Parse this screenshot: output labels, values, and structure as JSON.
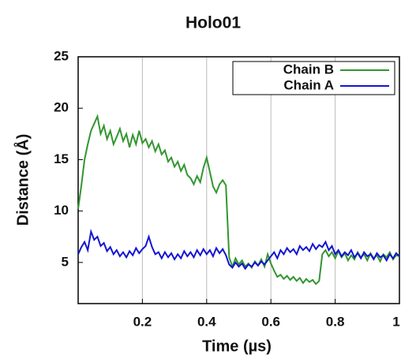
{
  "chart_data": {
    "type": "line",
    "title": "Holo01",
    "x_label": "Time (µs)",
    "y_label": "Distance (Å)",
    "x": [
      0,
      0.01,
      0.02,
      0.03,
      0.04,
      0.05,
      0.06,
      0.07,
      0.08,
      0.09,
      0.1,
      0.11,
      0.12,
      0.13,
      0.14,
      0.15,
      0.16,
      0.17,
      0.18,
      0.19,
      0.2,
      0.21,
      0.22,
      0.23,
      0.24,
      0.25,
      0.26,
      0.27,
      0.28,
      0.29,
      0.3,
      0.31,
      0.32,
      0.33,
      0.34,
      0.35,
      0.36,
      0.37,
      0.38,
      0.39,
      0.4,
      0.41,
      0.42,
      0.43,
      0.44,
      0.45,
      0.46,
      0.47,
      0.48,
      0.49,
      0.5,
      0.51,
      0.52,
      0.53,
      0.54,
      0.55,
      0.56,
      0.57,
      0.58,
      0.59,
      0.6,
      0.61,
      0.62,
      0.63,
      0.64,
      0.65,
      0.66,
      0.67,
      0.68,
      0.69,
      0.7,
      0.71,
      0.72,
      0.73,
      0.74,
      0.75,
      0.76,
      0.77,
      0.78,
      0.79,
      0.8,
      0.81,
      0.82,
      0.83,
      0.84,
      0.85,
      0.86,
      0.87,
      0.88,
      0.89,
      0.9,
      0.91,
      0.92,
      0.93,
      0.94,
      0.95,
      0.96,
      0.97,
      0.98,
      0.99,
      1
    ],
    "series": [
      {
        "name": "Chain B",
        "color": "#32962f",
        "values": [
          10.2,
          12.5,
          15,
          16.5,
          17.8,
          18.5,
          19.2,
          17.5,
          18.3,
          17,
          17.8,
          16.5,
          17.2,
          18,
          16.8,
          17.5,
          16.2,
          17.4,
          16.5,
          17.8,
          16.6,
          17,
          16.2,
          16.8,
          15.8,
          16.5,
          15.5,
          15.9,
          14.8,
          15.2,
          14.3,
          14.8,
          13.9,
          14.5,
          13.5,
          13.2,
          12.6,
          13.4,
          12.8,
          14.2,
          15.2,
          13.8,
          12.4,
          11.8,
          12.6,
          13,
          12.5,
          5.5,
          4.6,
          5.4,
          4.8,
          5.2,
          4.6,
          4.9,
          4.5,
          5.1,
          4.7,
          5.3,
          4.6,
          5.8,
          4.9,
          4.2,
          3.6,
          3.8,
          3.4,
          3.7,
          3.3,
          3.6,
          3.2,
          3.5,
          3,
          3.4,
          3.1,
          3.3,
          2.9,
          3.2,
          5.8,
          6.2,
          5.6,
          6,
          5.4,
          6.1,
          5.5,
          5.9,
          5.2,
          5.7,
          5.3,
          6,
          5.5,
          5.8,
          5.2,
          5.9,
          5.4,
          5.7,
          5.1,
          5.8,
          5.5,
          6,
          5.3,
          5.7,
          5.6
        ]
      },
      {
        "name": "Chain A",
        "color": "#1414d2",
        "values": [
          5.8,
          6.5,
          7,
          6.2,
          8,
          7.2,
          7.5,
          6.6,
          6.9,
          6.1,
          6.5,
          5.8,
          6.2,
          5.6,
          6,
          5.5,
          6.1,
          5.7,
          6.4,
          5.9,
          6.3,
          6.6,
          7.5,
          6.5,
          5.8,
          6,
          5.4,
          6,
          5.5,
          5.9,
          5.3,
          5.8,
          5.4,
          6.1,
          5.6,
          6,
          5.5,
          6.2,
          5.7,
          6.3,
          5.8,
          6.2,
          5.6,
          6.4,
          5.9,
          6.3,
          5.7,
          4.8,
          4.5,
          5,
          4.6,
          4.9,
          4.4,
          4.8,
          4.6,
          5,
          4.7,
          5.1,
          4.8,
          5.2,
          5.6,
          6,
          5.4,
          6.2,
          5.8,
          6.4,
          6,
          6.3,
          5.8,
          6.6,
          6.2,
          6.5,
          6.1,
          6.8,
          6.3,
          6.7,
          6.5,
          7,
          6.2,
          6.6,
          5.8,
          6.2,
          5.6,
          6,
          5.7,
          6.2,
          5.5,
          5.9,
          5.4,
          6,
          5.6,
          5.8,
          5.3,
          5.9,
          5.5,
          5.7,
          5.2,
          5.8,
          5.4,
          5.9,
          5.6
        ]
      }
    ],
    "xlim": [
      0,
      1
    ],
    "xticks": [
      0.2,
      0.4,
      0.6,
      0.8,
      1
    ],
    "ylim": [
      1,
      25
    ],
    "yticks": [
      5,
      10,
      15,
      20,
      25
    ],
    "grid": true,
    "legend": "top-right"
  }
}
